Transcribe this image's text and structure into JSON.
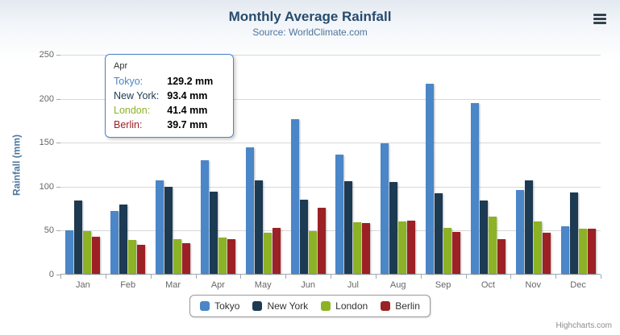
{
  "chart_data": {
    "type": "bar",
    "title": "Monthly Average Rainfall",
    "subtitle": "Source: WorldClimate.com",
    "xlabel": "",
    "ylabel": "Rainfall (mm)",
    "ylim": [
      0,
      250
    ],
    "yticks": [
      0,
      50,
      100,
      150,
      200,
      250
    ],
    "grid": true,
    "legend_position": "bottom",
    "categories": [
      "Jan",
      "Feb",
      "Mar",
      "Apr",
      "May",
      "Jun",
      "Jul",
      "Aug",
      "Sep",
      "Oct",
      "Nov",
      "Dec"
    ],
    "series": [
      {
        "name": "Tokyo",
        "color": "#4a86c8",
        "values": [
          49.9,
          71.5,
          106.4,
          129.2,
          144.0,
          176.0,
          135.6,
          148.5,
          216.4,
          194.1,
          95.6,
          54.4
        ]
      },
      {
        "name": "New York",
        "color": "#1c3a52",
        "values": [
          83.6,
          78.8,
          98.5,
          93.4,
          106.0,
          84.5,
          105.0,
          104.3,
          91.2,
          83.5,
          106.6,
          92.3
        ]
      },
      {
        "name": "London",
        "color": "#8cb225",
        "values": [
          48.9,
          38.8,
          39.3,
          41.4,
          47.0,
          48.3,
          59.0,
          59.6,
          52.4,
          65.2,
          59.3,
          51.2
        ]
      },
      {
        "name": "Berlin",
        "color": "#9c2125",
        "values": [
          42.4,
          33.2,
          34.5,
          39.7,
          52.6,
          75.5,
          57.4,
          60.4,
          47.6,
          39.1,
          46.8,
          51.1
        ]
      }
    ]
  },
  "tooltip": {
    "category": "Apr",
    "rows": [
      {
        "name": "Tokyo:",
        "value": "129.2 mm",
        "color": "#4a86c8"
      },
      {
        "name": "New York:",
        "value": "93.4 mm",
        "color": "#1c3a52"
      },
      {
        "name": "London:",
        "value": "41.4 mm",
        "color": "#8cb225"
      },
      {
        "name": "Berlin:",
        "value": "39.7 mm",
        "color": "#9c2125"
      }
    ]
  },
  "export_menu": {
    "icon": "hamburger-icon"
  },
  "credits": "Highcharts.com"
}
